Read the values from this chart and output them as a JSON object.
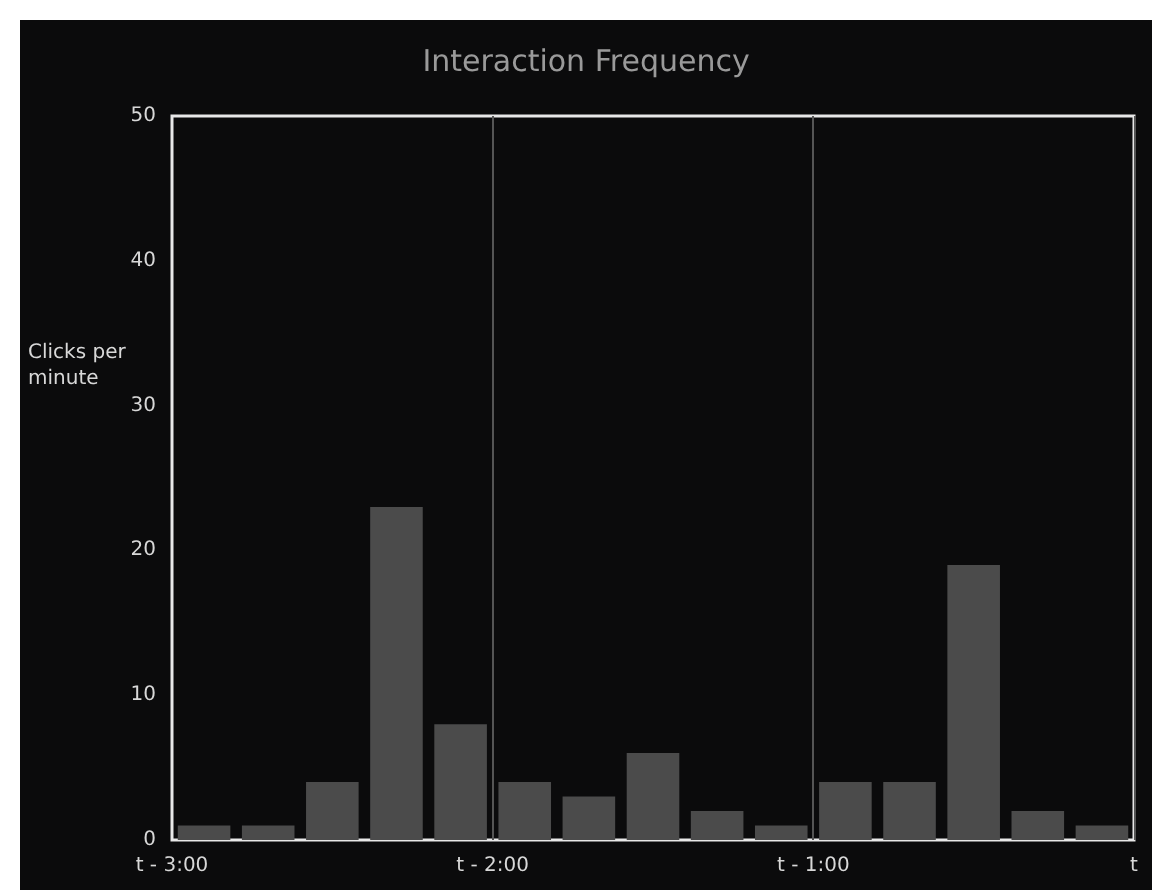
{
  "chart_data": {
    "type": "bar",
    "title": "Interaction Frequency",
    "ylabel": "Clicks per minute",
    "categories": [
      null,
      null,
      null,
      null,
      null,
      null,
      null,
      null,
      null,
      null,
      null,
      null,
      null,
      null,
      null
    ],
    "values": [
      1,
      1,
      4,
      23,
      8,
      4,
      3,
      6,
      2,
      1,
      4,
      4,
      19,
      2,
      1
    ],
    "color": "#4b4b4b",
    "annotations": [
      "t - 3:00",
      "t - 2:00",
      "t - 1:00",
      "t"
    ],
    "ylim": [
      0,
      50
    ],
    "yticks": [
      0,
      10,
      20,
      30,
      40,
      50
    ],
    "grid": "x"
  }
}
